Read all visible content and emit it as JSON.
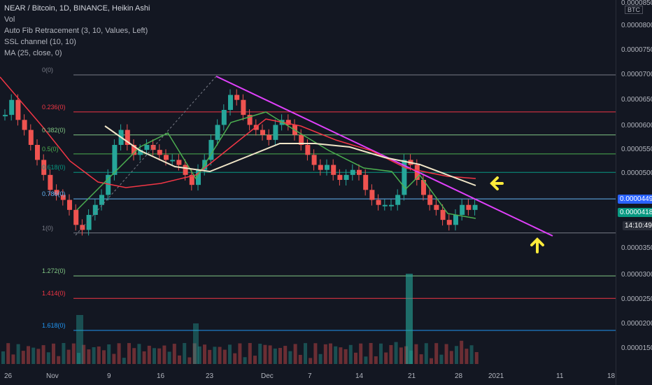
{
  "legend": {
    "title": "NEAR / Bitcoin, 1D, BINANCE, Heikin Ashi",
    "vol": "Vol",
    "fib": "Auto Fib Retracement (3, 10, Values, Left)",
    "ssl": "SSL channel (10, 10)",
    "ma": "MA (25, close, 0)"
  },
  "fib_levels": [
    {
      "label": "0(0)",
      "value": 7e-06,
      "color": "#787b86"
    },
    {
      "label": "0.236(0)",
      "value": 6.26e-06,
      "color": "#f23645"
    },
    {
      "label": "0.382(0)",
      "value": 5.8e-06,
      "color": "#81c784"
    },
    {
      "label": "0.5(0)",
      "value": 5.42e-06,
      "color": "#4caf50"
    },
    {
      "label": "0.618(0)",
      "value": 5.05e-06,
      "color": "#089981"
    },
    {
      "label": "0.786(0)",
      "value": 4.52e-06,
      "color": "#64b5f6"
    },
    {
      "label": "1(0)",
      "value": 3.84e-06,
      "color": "#787b86"
    },
    {
      "label": "1.272(0)",
      "value": 2.98e-06,
      "color": "#81c784"
    },
    {
      "label": "1.414(0)",
      "value": 2.53e-06,
      "color": "#f23645"
    },
    {
      "label": "1.618(0)",
      "value": 1.89e-06,
      "color": "#2196f3"
    }
  ],
  "y_axis": {
    "unit": "BTC",
    "ticks": [
      "0.0000850",
      "0.0000800",
      "0.0000750",
      "0.0000700",
      "0.0000650",
      "0.0000600",
      "0.0000550",
      "0.0000500",
      "0.0000449",
      "0.0000418",
      "0.0000350",
      "0.0000300",
      "0.0000250",
      "0.0000200",
      "0.0000150"
    ]
  },
  "badges": {
    "price": "0.0000418",
    "upper": "0.0000449",
    "timer": "14:10:49"
  },
  "x_axis": {
    "ticks": [
      "26",
      "Nov",
      "9",
      "16",
      "23",
      "Dec",
      "7",
      "14",
      "21",
      "28",
      "2021",
      "11",
      "18"
    ]
  },
  "colors": {
    "up": "#26a69a",
    "down": "#ef5350",
    "trend": "#e040fb",
    "ma": "#f0e6c8",
    "ssl_green": "#4caf50",
    "ssl_red": "#f23645",
    "arrow": "#ffeb3b"
  },
  "chart_data": {
    "type": "candlestick",
    "closes": [
      6.2,
      6.5,
      6.1,
      5.9,
      5.6,
      5.3,
      5.0,
      4.7,
      4.6,
      4.5,
      4.3,
      4.0,
      3.9,
      4.2,
      4.4,
      4.6,
      5.0,
      5.6,
      5.9,
      5.6,
      5.4,
      5.5,
      5.6,
      5.5,
      5.4,
      5.3,
      5.3,
      5.2,
      5.0,
      4.8,
      5.1,
      5.3,
      5.7,
      6.0,
      6.3,
      6.6,
      6.5,
      6.2,
      6.0,
      5.9,
      5.8,
      5.7,
      6.0,
      6.1,
      6.0,
      5.8,
      5.6,
      5.4,
      5.2,
      5.1,
      5.2,
      5.0,
      4.9,
      5.0,
      5.1,
      5.0,
      4.7,
      4.5,
      4.4,
      4.4,
      4.4,
      4.6,
      5.3,
      5.2,
      4.9,
      4.6,
      4.4,
      4.3,
      4.1,
      4.0,
      4.2,
      4.4,
      4.3,
      4.4
    ],
    "scale": "1e-6 BTC"
  }
}
